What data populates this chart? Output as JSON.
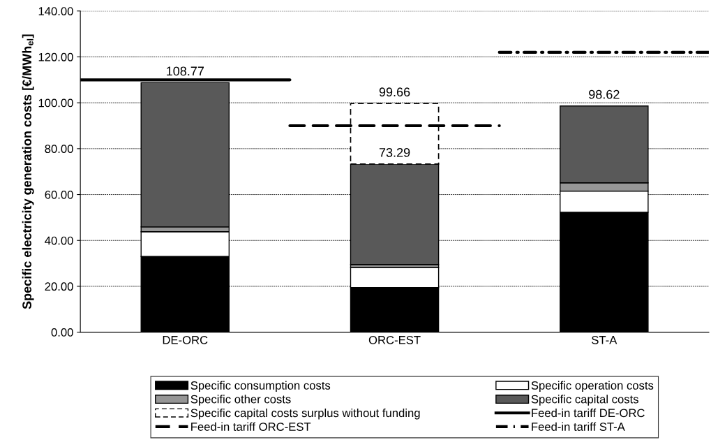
{
  "chart_data": {
    "type": "bar",
    "stacked": true,
    "ylabel": "Specific electricity generation costs [€/MWh$_{el}$]",
    "categories": [
      "DE-ORC",
      "ORC-EST",
      "ST-A"
    ],
    "series": [
      {
        "name": "Specific consumption costs",
        "color": "#000000",
        "values": [
          33.0,
          19.5,
          52.3
        ]
      },
      {
        "name": "Specific operation costs",
        "color": "#ffffff",
        "values": [
          10.8,
          8.8,
          9.2
        ]
      },
      {
        "name": "Specific other costs",
        "color": "#969696",
        "values": [
          2.1,
          1.2,
          3.6
        ]
      },
      {
        "name": "Specific capital costs",
        "color": "#595959",
        "values": [
          62.87,
          43.79,
          33.52
        ]
      },
      {
        "name": "Specific capital costs surplus without funding",
        "color": "#ffffff",
        "line_style": "dashed",
        "values": [
          null,
          26.37,
          null
        ]
      }
    ],
    "ref_lines": [
      {
        "axis": "y",
        "value": 110,
        "label": "Feed-in tariff DE-ORC",
        "color": "#000000",
        "line_style": "solid"
      },
      {
        "axis": "y",
        "value": 90,
        "label": "Feed-in tariff ORC-EST",
        "color": "#000000",
        "line_style": "dashed"
      },
      {
        "axis": "y",
        "value": 122,
        "label": "Feed-in tariff ST-A",
        "color": "#000000",
        "line_style": "dashdot"
      }
    ],
    "totals": [
      "108.77",
      "99.66",
      "98.62"
    ],
    "annotations": [
      {
        "text": "73.29",
        "x": "ORC-EST",
        "y": 73.29
      }
    ],
    "ylim": [
      0,
      140
    ],
    "yticks": [
      {
        "value": 0,
        "label": "0.00"
      },
      {
        "value": 20,
        "label": "20.00"
      },
      {
        "value": 40,
        "label": "40.00"
      },
      {
        "value": 60,
        "label": "60.00"
      },
      {
        "value": 80,
        "label": "80.00"
      },
      {
        "value": 100,
        "label": "100.00"
      },
      {
        "value": 120,
        "label": "120.00"
      },
      {
        "value": 140,
        "label": "140.00"
      }
    ],
    "grid": "y",
    "legend": "bottom"
  }
}
